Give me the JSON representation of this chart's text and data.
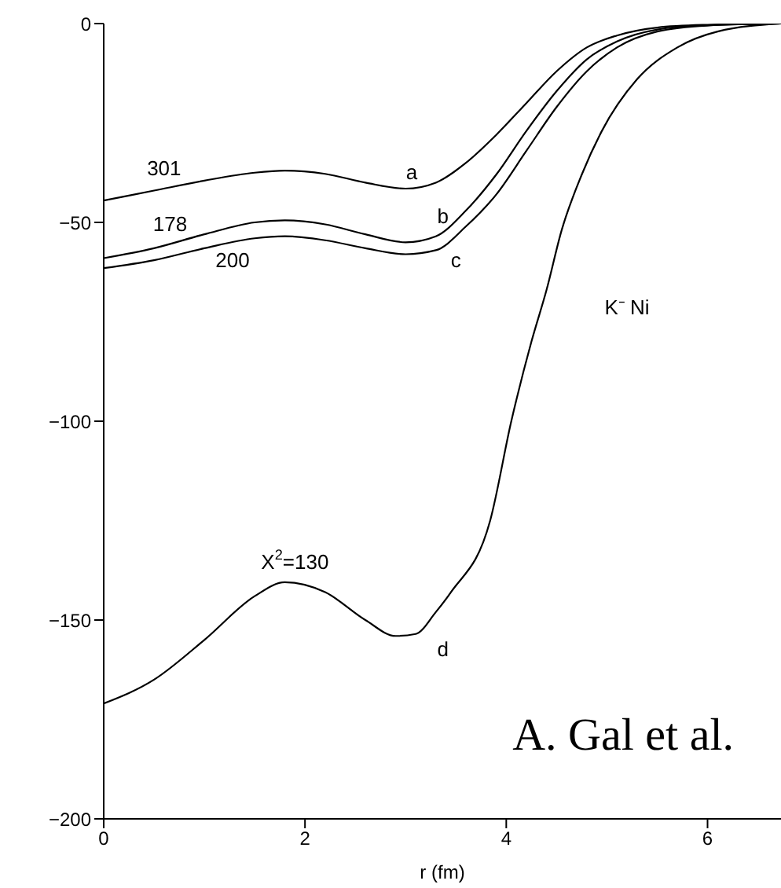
{
  "chart_data": {
    "type": "line",
    "xlabel": "r (fm)",
    "xlim": [
      0,
      6.73
    ],
    "xticks": [
      0,
      2,
      4,
      6
    ],
    "ylim": [
      -200,
      0
    ],
    "yticks": [
      -200,
      -150,
      -100,
      -50,
      0
    ],
    "marker": "none",
    "line_style": "solid",
    "series": [
      {
        "name": "a",
        "color": "#000000",
        "x": [
          0,
          0.5,
          1,
          1.5,
          1.8,
          2.2,
          2.6,
          3,
          3.3,
          3.6,
          3.9,
          4.2,
          4.5,
          4.8,
          5.1,
          5.5,
          6,
          6.73
        ],
        "values": [
          -44.5,
          -42,
          -39.5,
          -37.5,
          -37,
          -37.8,
          -40,
          -41.5,
          -40,
          -35,
          -28,
          -20,
          -12,
          -6,
          -3,
          -1,
          -0.3,
          0
        ]
      },
      {
        "name": "b",
        "color": "#000000",
        "x": [
          0,
          0.5,
          1,
          1.5,
          1.8,
          2.2,
          2.6,
          3,
          3.3,
          3.6,
          3.9,
          4.2,
          4.5,
          4.8,
          5.1,
          5.5,
          6,
          6.73
        ],
        "values": [
          -59,
          -56.5,
          -53,
          -50,
          -49.5,
          -50.5,
          -53,
          -55,
          -53.5,
          -47,
          -38,
          -27,
          -17,
          -9,
          -4.5,
          -1.5,
          -0.4,
          0
        ]
      },
      {
        "name": "c",
        "color": "#000000",
        "x": [
          0,
          0.5,
          1,
          1.5,
          1.8,
          2.2,
          2.6,
          3,
          3.3,
          3.6,
          3.9,
          4.2,
          4.5,
          4.8,
          5.1,
          5.5,
          6,
          6.73
        ],
        "values": [
          -61.5,
          -59.5,
          -56.5,
          -54,
          -53.5,
          -54.5,
          -56.5,
          -58,
          -57,
          -51,
          -43,
          -32,
          -21,
          -12,
          -6,
          -2,
          -0.5,
          0
        ]
      },
      {
        "name": "d",
        "color": "#000000",
        "x": [
          0,
          0.5,
          1,
          1.5,
          1.8,
          2.2,
          2.6,
          2.9,
          3.1,
          3.3,
          3.45,
          3.84,
          4.05,
          4.25,
          4.4,
          4.55,
          4.75,
          4.95,
          5.3,
          5.7,
          6.1,
          6.73
        ],
        "values": [
          -171,
          -165,
          -155,
          -144,
          -140.5,
          -143,
          -150,
          -154,
          -153.5,
          -148,
          -143,
          -125,
          -100,
          -80,
          -67,
          -52,
          -38,
          -27,
          -14,
          -6,
          -2,
          0
        ]
      }
    ],
    "annotations": [
      "301",
      "178",
      "200",
      "X$^{2}$=130",
      "K⁻ Ni",
      "A. Gal et al."
    ]
  }
}
